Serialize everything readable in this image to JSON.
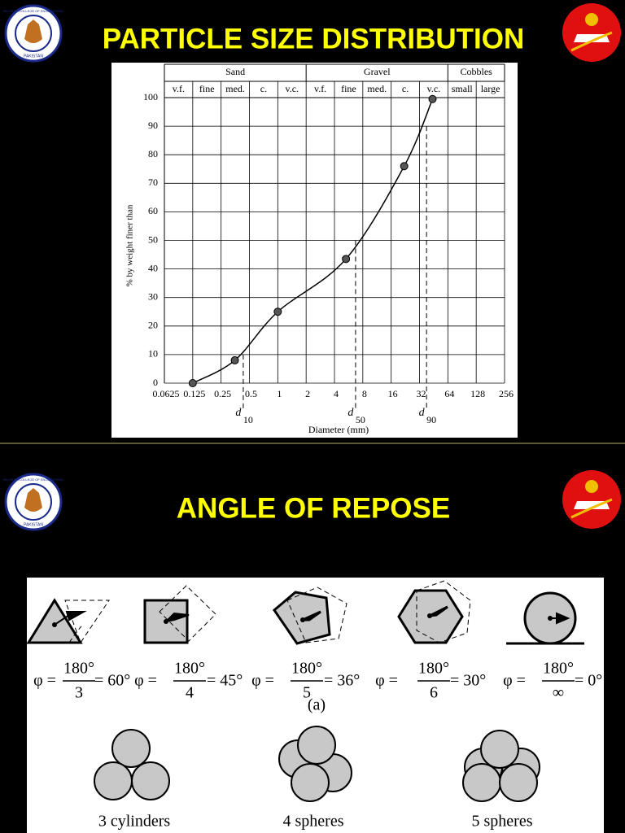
{
  "logo": {
    "text": "MILITARY COLLEGE OF ENGINEERING",
    "country": "PAKISTAN"
  },
  "slide_1": {
    "title": "PARTICLE SIZE DISTRIBUTION"
  },
  "chart_data": {
    "type": "line",
    "xlabel": "Diameter (mm)",
    "ylabel": "% by weight finer than",
    "x_scale": "log",
    "xlim": [
      0.0625,
      256
    ],
    "xticks": [
      0.0625,
      0.125,
      0.25,
      0.5,
      1,
      2,
      4,
      8,
      16,
      32,
      64,
      128,
      256
    ],
    "ylim": [
      0,
      100
    ],
    "yticks": [
      0,
      10,
      20,
      30,
      40,
      50,
      60,
      70,
      80,
      90,
      100
    ],
    "grid": true,
    "classes": [
      {
        "name": "Sand",
        "subclasses": [
          "v.f.",
          "fine",
          "med.",
          "c.",
          "v.c."
        ]
      },
      {
        "name": "Gravel",
        "subclasses": [
          "v.f.",
          "fine",
          "med.",
          "c.",
          "v.c."
        ]
      },
      {
        "name": "Cobbles",
        "subclasses": [
          "small",
          "large"
        ]
      }
    ],
    "series": [
      {
        "color": "#000000",
        "x": [
          0.125,
          0.35,
          1,
          5.3,
          22,
          44
        ],
        "values": [
          0,
          8,
          25,
          43.5,
          76,
          99.5
        ]
      }
    ],
    "markers": [
      {
        "label": "d",
        "subscript": "10",
        "x": 0.43,
        "y": 10
      },
      {
        "label": "d",
        "subscript": "50",
        "x": 6.7,
        "y": 50
      },
      {
        "label": "d",
        "subscript": "90",
        "x": 38,
        "y": 90
      }
    ]
  },
  "slide_2": {
    "title": "ANGLE OF REPOSE",
    "equations": [
      {
        "lhs": "φ =",
        "numerator": "180°",
        "denominator": "3",
        "result": "= 60°"
      },
      {
        "lhs": "φ =",
        "numerator": "180°",
        "denominator": "4",
        "result": "= 45°"
      },
      {
        "lhs": "φ =",
        "numerator": "180°",
        "denominator": "5",
        "result": "= 36°"
      },
      {
        "lhs": "φ =",
        "numerator": "180°",
        "denominator": "6",
        "result": "= 30°"
      },
      {
        "lhs": "φ =",
        "numerator": "180°",
        "denominator": "∞",
        "result": "= 0°"
      }
    ],
    "panel_label": "(a)",
    "captions": [
      "3 cylinders",
      "4 spheres",
      "5 spheres"
    ]
  }
}
